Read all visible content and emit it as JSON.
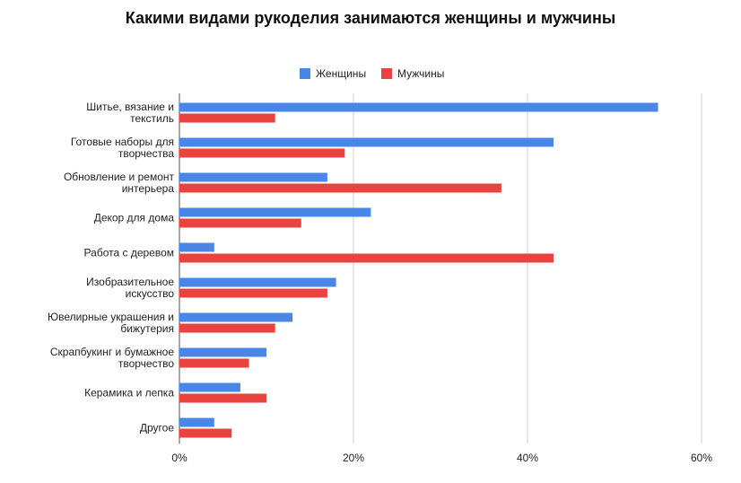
{
  "chart_data": {
    "type": "bar",
    "orientation": "horizontal",
    "title": "Какими видами рукоделия занимаются женщины и мужчины",
    "categories": [
      [
        "Шитье, вязание и",
        "текстиль"
      ],
      [
        "Готовые наборы для",
        "творчества"
      ],
      [
        "Обновление и ремонт",
        "интерьера"
      ],
      [
        "Декор для дома"
      ],
      [
        "Работа с деревом"
      ],
      [
        "Изобразительное",
        "искусство"
      ],
      [
        "Ювелирные украшения и",
        "бижутерия"
      ],
      [
        "Скрапбукинг и бумажное",
        "творчество"
      ],
      [
        "Керамика и лепка"
      ],
      [
        "Другое"
      ]
    ],
    "series": [
      {
        "name": "Женщины",
        "color": "#4a86e8",
        "values": [
          55,
          43,
          17,
          22,
          4,
          18,
          13,
          10,
          7,
          4
        ]
      },
      {
        "name": "Мужчины",
        "color": "#e8433e",
        "values": [
          11,
          19,
          37,
          14,
          43,
          17,
          11,
          8,
          10,
          6
        ]
      }
    ],
    "xlim": [
      0,
      60
    ],
    "xticks": [
      "0%",
      "20%",
      "40%",
      "60%"
    ],
    "xtick_values": [
      0,
      20,
      40,
      60
    ],
    "grid": true,
    "legend_position": "top"
  }
}
